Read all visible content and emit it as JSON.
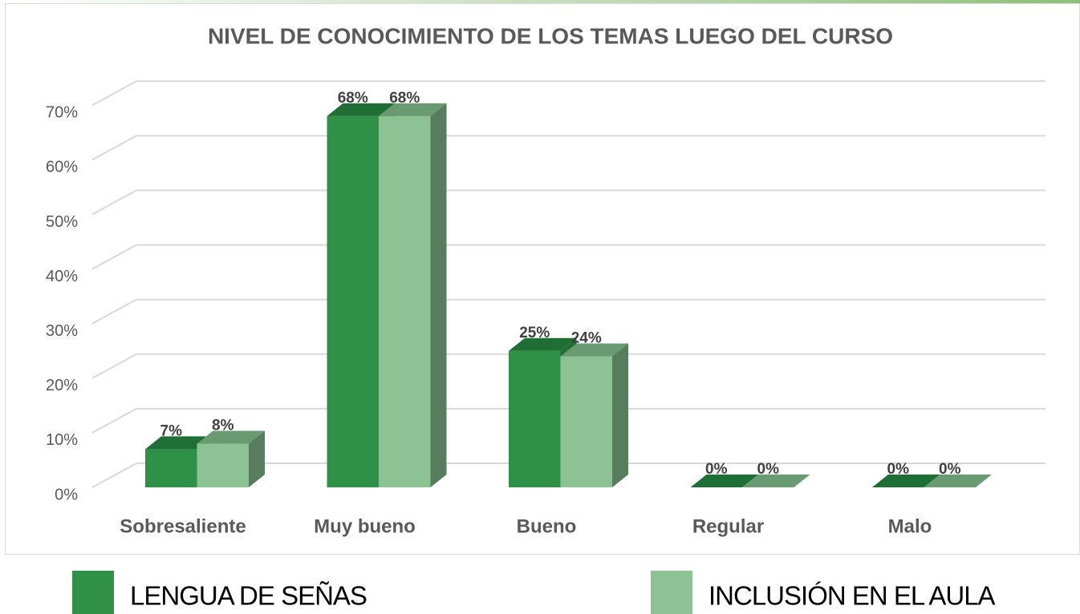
{
  "chart_data": {
    "type": "bar3d",
    "title": "NIVEL DE CONOCIMIENTO DE LOS TEMAS LUEGO DEL CURSO",
    "categories": [
      "Sobresaliente",
      "Muy bueno",
      "Bueno",
      "Regular",
      "Malo"
    ],
    "series": [
      {
        "name": "LENGUA DE SEÑAS",
        "color": "#2e9147",
        "values": [
          7,
          68,
          25,
          0,
          0
        ],
        "value_labels": [
          "7%",
          "68%",
          "25%",
          "0%",
          "0%"
        ]
      },
      {
        "name": "INCLUSIÓN EN EL AULA",
        "color": "#8dc295",
        "values": [
          8,
          68,
          24,
          0,
          0
        ],
        "value_labels": [
          "8%",
          "68%",
          "24%",
          "0%",
          "0%"
        ]
      }
    ],
    "ylim": [
      0,
      70
    ],
    "yticks": [
      {
        "value": 0,
        "label": "0%"
      },
      {
        "value": 10,
        "label": "10%"
      },
      {
        "value": 20,
        "label": "20%"
      },
      {
        "value": 30,
        "label": "30%"
      },
      {
        "value": 40,
        "label": "40%"
      },
      {
        "value": 50,
        "label": "50%"
      },
      {
        "value": 60,
        "label": "60%"
      },
      {
        "value": 70,
        "label": "70%"
      }
    ],
    "grid": true
  }
}
